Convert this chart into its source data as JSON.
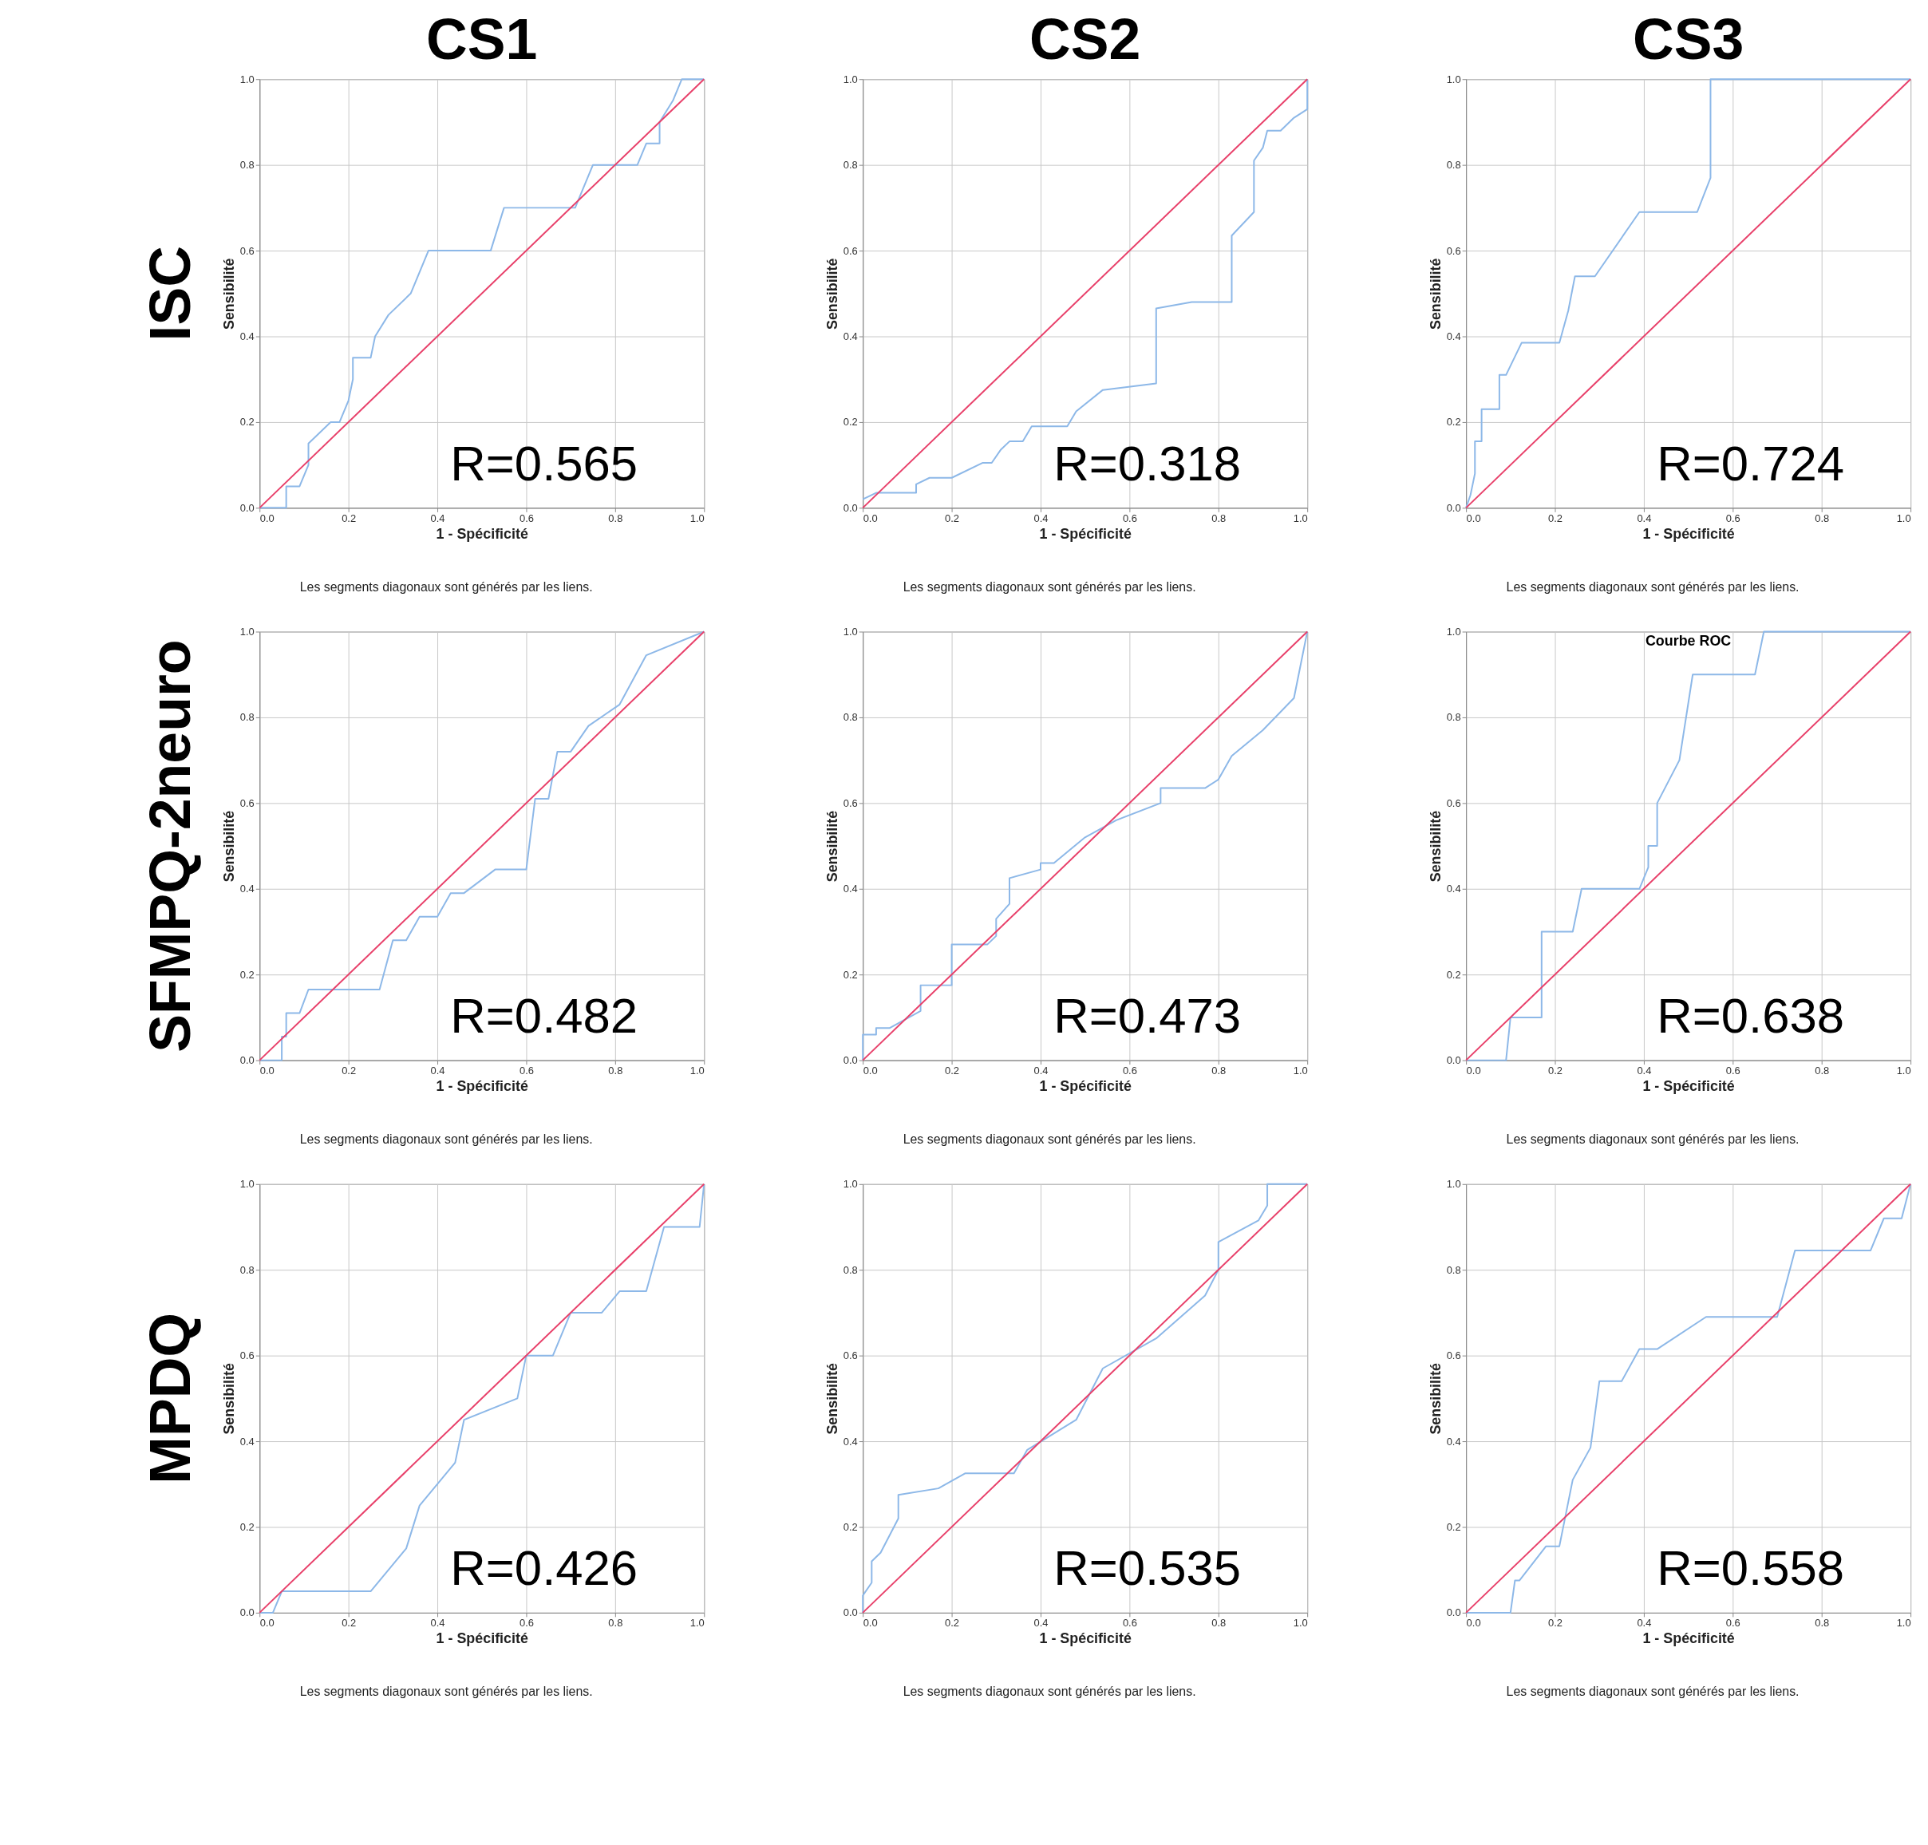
{
  "chart_data": [
    {
      "type": "line",
      "title": "CS1",
      "subtitle": "ISC",
      "xlabel": "1 - Spécificité",
      "ylabel": "Sensibilité",
      "xlim": [
        0,
        1
      ],
      "ylim": [
        0,
        1
      ],
      "xticks": [
        {
          "value": 0,
          "label": "0.0"
        },
        {
          "value": 0.2,
          "label": "0.2"
        },
        {
          "value": 0.4,
          "label": "0.4"
        },
        {
          "value": 0.6,
          "label": "0.6"
        },
        {
          "value": 0.8,
          "label": "0.8"
        },
        {
          "value": 1,
          "label": "1.0"
        }
      ],
      "yticks": [
        {
          "value": 0,
          "label": "0.0"
        },
        {
          "value": 0.2,
          "label": "0.2"
        },
        {
          "value": 0.4,
          "label": "0.4"
        },
        {
          "value": 0.6,
          "label": "0.6"
        },
        {
          "value": 0.8,
          "label": "0.8"
        },
        {
          "value": 1,
          "label": "1.0"
        }
      ],
      "grid": true,
      "annotations": [
        "R=0.565",
        "Les segments diagonaux sont générés par les liens."
      ],
      "series": [
        {
          "color": "#8db8e8",
          "x": [
            0,
            0.06,
            0.06,
            0.09,
            0.11,
            0.11,
            0.16,
            0.18,
            0.2,
            0.21,
            0.21,
            0.25,
            0.26,
            0.29,
            0.34,
            0.38,
            0.52,
            0.55,
            0.71,
            0.75,
            0.85,
            0.87,
            0.9,
            0.9,
            0.93,
            0.95,
            1
          ],
          "values": [
            0,
            0,
            0.05,
            0.05,
            0.1,
            0.15,
            0.2,
            0.2,
            0.25,
            0.3,
            0.35,
            0.35,
            0.4,
            0.45,
            0.5,
            0.6,
            0.6,
            0.7,
            0.7,
            0.8,
            0.8,
            0.85,
            0.85,
            0.9,
            0.95,
            1,
            1
          ]
        },
        {
          "color": "#e8406a",
          "x": [
            0,
            1
          ],
          "values": [
            0,
            1
          ]
        }
      ]
    },
    {
      "type": "line",
      "title": "CS2",
      "xlabel": "1 - Spécificité",
      "ylabel": "Sensibilité",
      "xlim": [
        0,
        1
      ],
      "ylim": [
        0,
        1
      ],
      "xticks": [
        {
          "value": 0,
          "label": "0.0"
        },
        {
          "value": 0.2,
          "label": "0.2"
        },
        {
          "value": 0.4,
          "label": "0.4"
        },
        {
          "value": 0.6,
          "label": "0.6"
        },
        {
          "value": 0.8,
          "label": "0.8"
        },
        {
          "value": 1,
          "label": "1.0"
        }
      ],
      "yticks": [
        {
          "value": 0,
          "label": "0.0"
        },
        {
          "value": 0.2,
          "label": "0.2"
        },
        {
          "value": 0.4,
          "label": "0.4"
        },
        {
          "value": 0.6,
          "label": "0.6"
        },
        {
          "value": 0.8,
          "label": "0.8"
        },
        {
          "value": 1,
          "label": "1.0"
        }
      ],
      "grid": true,
      "annotations": [
        "R=0.318",
        "Les segments diagonaux sont générés par les liens."
      ],
      "series": [
        {
          "color": "#8db8e8",
          "x": [
            0,
            0.03,
            0.12,
            0.12,
            0.15,
            0.2,
            0.27,
            0.29,
            0.31,
            0.33,
            0.36,
            0.38,
            0.46,
            0.48,
            0.54,
            0.66,
            0.66,
            0.74,
            0.83,
            0.83,
            0.88,
            0.88,
            0.9,
            0.91,
            0.94,
            0.97,
            1,
            1
          ],
          "values": [
            0.02,
            0.035,
            0.035,
            0.055,
            0.07,
            0.07,
            0.105,
            0.105,
            0.135,
            0.155,
            0.155,
            0.19,
            0.19,
            0.225,
            0.275,
            0.29,
            0.465,
            0.48,
            0.48,
            0.635,
            0.69,
            0.81,
            0.84,
            0.88,
            0.88,
            0.91,
            0.93,
            1
          ]
        },
        {
          "color": "#e8406a",
          "x": [
            0,
            1
          ],
          "values": [
            0,
            1
          ]
        }
      ]
    },
    {
      "type": "line",
      "title": "CS3",
      "xlabel": "1 - Spécificité",
      "ylabel": "Sensibilité",
      "xlim": [
        0,
        1
      ],
      "ylim": [
        0,
        1
      ],
      "xticks": [
        {
          "value": 0,
          "label": "0.0"
        },
        {
          "value": 0.2,
          "label": "0.2"
        },
        {
          "value": 0.4,
          "label": "0.4"
        },
        {
          "value": 0.6,
          "label": "0.6"
        },
        {
          "value": 0.8,
          "label": "0.8"
        },
        {
          "value": 1,
          "label": "1.0"
        }
      ],
      "yticks": [
        {
          "value": 0,
          "label": "0.0"
        },
        {
          "value": 0.2,
          "label": "0.2"
        },
        {
          "value": 0.4,
          "label": "0.4"
        },
        {
          "value": 0.6,
          "label": "0.6"
        },
        {
          "value": 0.8,
          "label": "0.8"
        },
        {
          "value": 1,
          "label": "1.0"
        }
      ],
      "grid": true,
      "annotations": [
        "R=0.724",
        "Les segments diagonaux sont générés par les liens."
      ],
      "series": [
        {
          "color": "#8db8e8",
          "x": [
            0,
            0.01,
            0.02,
            0.02,
            0.035,
            0.035,
            0.075,
            0.075,
            0.09,
            0.125,
            0.21,
            0.23,
            0.245,
            0.29,
            0.39,
            0.52,
            0.55,
            0.55,
            1
          ],
          "values": [
            0,
            0.03,
            0.08,
            0.155,
            0.155,
            0.23,
            0.23,
            0.31,
            0.31,
            0.385,
            0.385,
            0.46,
            0.54,
            0.54,
            0.69,
            0.69,
            0.77,
            1,
            1
          ]
        },
        {
          "color": "#e8406a",
          "x": [
            0,
            1
          ],
          "values": [
            0,
            1
          ]
        }
      ]
    },
    {
      "type": "line",
      "subtitle": "SFMPQ-2neuro",
      "xlabel": "1 - Spécificité",
      "ylabel": "Sensibilité",
      "xlim": [
        0,
        1
      ],
      "ylim": [
        0,
        1
      ],
      "xticks": [
        {
          "value": 0,
          "label": "0.0"
        },
        {
          "value": 0.2,
          "label": "0.2"
        },
        {
          "value": 0.4,
          "label": "0.4"
        },
        {
          "value": 0.6,
          "label": "0.6"
        },
        {
          "value": 0.8,
          "label": "0.8"
        },
        {
          "value": 1,
          "label": "1.0"
        }
      ],
      "yticks": [
        {
          "value": 0,
          "label": "0.0"
        },
        {
          "value": 0.2,
          "label": "0.2"
        },
        {
          "value": 0.4,
          "label": "0.4"
        },
        {
          "value": 0.6,
          "label": "0.6"
        },
        {
          "value": 0.8,
          "label": "0.8"
        },
        {
          "value": 1,
          "label": "1.0"
        }
      ],
      "grid": true,
      "annotations": [
        "R=0.482",
        "Les segments diagonaux sont générés par les liens."
      ],
      "series": [
        {
          "color": "#8db8e8",
          "x": [
            0,
            0.05,
            0.05,
            0.06,
            0.06,
            0.09,
            0.11,
            0.27,
            0.3,
            0.33,
            0.36,
            0.4,
            0.43,
            0.46,
            0.53,
            0.6,
            0.62,
            0.65,
            0.67,
            0.7,
            0.74,
            0.81,
            0.87,
            1
          ],
          "values": [
            0,
            0,
            0.055,
            0.055,
            0.11,
            0.11,
            0.165,
            0.165,
            0.28,
            0.28,
            0.335,
            0.335,
            0.39,
            0.39,
            0.445,
            0.445,
            0.61,
            0.61,
            0.72,
            0.72,
            0.78,
            0.83,
            0.945,
            1
          ]
        },
        {
          "color": "#e8406a",
          "x": [
            0,
            1
          ],
          "values": [
            0,
            1
          ]
        }
      ]
    },
    {
      "type": "line",
      "xlabel": "1 - Spécificité",
      "ylabel": "Sensibilité",
      "xlim": [
        0,
        1
      ],
      "ylim": [
        0,
        1
      ],
      "xticks": [
        {
          "value": 0,
          "label": "0.0"
        },
        {
          "value": 0.2,
          "label": "0.2"
        },
        {
          "value": 0.4,
          "label": "0.4"
        },
        {
          "value": 0.6,
          "label": "0.6"
        },
        {
          "value": 0.8,
          "label": "0.8"
        },
        {
          "value": 1,
          "label": "1.0"
        }
      ],
      "yticks": [
        {
          "value": 0,
          "label": "0.0"
        },
        {
          "value": 0.2,
          "label": "0.2"
        },
        {
          "value": 0.4,
          "label": "0.4"
        },
        {
          "value": 0.6,
          "label": "0.6"
        },
        {
          "value": 0.8,
          "label": "0.8"
        },
        {
          "value": 1,
          "label": "1.0"
        }
      ],
      "grid": true,
      "annotations": [
        "R=0.473",
        "Les segments diagonaux sont générés par les liens."
      ],
      "series": [
        {
          "color": "#8db8e8",
          "x": [
            0,
            0,
            0.03,
            0.03,
            0.06,
            0.13,
            0.13,
            0.2,
            0.2,
            0.28,
            0.3,
            0.3,
            0.33,
            0.33,
            0.4,
            0.4,
            0.43,
            0.5,
            0.57,
            0.67,
            0.67,
            0.77,
            0.8,
            0.83,
            0.9,
            0.97,
            1
          ],
          "values": [
            0,
            0.06,
            0.06,
            0.075,
            0.075,
            0.115,
            0.175,
            0.175,
            0.27,
            0.27,
            0.29,
            0.33,
            0.365,
            0.425,
            0.445,
            0.46,
            0.46,
            0.52,
            0.56,
            0.6,
            0.635,
            0.635,
            0.655,
            0.71,
            0.77,
            0.845,
            1
          ]
        },
        {
          "color": "#e8406a",
          "x": [
            0,
            1
          ],
          "values": [
            0,
            1
          ]
        }
      ]
    },
    {
      "type": "line",
      "title": "Courbe ROC",
      "xlabel": "1 - Spécificité",
      "ylabel": "Sensibilité",
      "xlim": [
        0,
        1
      ],
      "ylim": [
        0,
        1
      ],
      "xticks": [
        {
          "value": 0,
          "label": "0.0"
        },
        {
          "value": 0.2,
          "label": "0.2"
        },
        {
          "value": 0.4,
          "label": "0.4"
        },
        {
          "value": 0.6,
          "label": "0.6"
        },
        {
          "value": 0.8,
          "label": "0.8"
        },
        {
          "value": 1,
          "label": "1.0"
        }
      ],
      "yticks": [
        {
          "value": 0,
          "label": "0.0"
        },
        {
          "value": 0.2,
          "label": "0.2"
        },
        {
          "value": 0.4,
          "label": "0.4"
        },
        {
          "value": 0.6,
          "label": "0.6"
        },
        {
          "value": 0.8,
          "label": "0.8"
        },
        {
          "value": 1,
          "label": "1.0"
        }
      ],
      "grid": true,
      "annotations": [
        "R=0.638",
        "Les segments diagonaux sont générés par les liens."
      ],
      "series": [
        {
          "color": "#8db8e8",
          "x": [
            0,
            0.09,
            0.1,
            0.17,
            0.17,
            0.24,
            0.26,
            0.39,
            0.41,
            0.41,
            0.43,
            0.43,
            0.48,
            0.51,
            0.65,
            0.67,
            1
          ],
          "values": [
            0,
            0,
            0.1,
            0.1,
            0.3,
            0.3,
            0.4,
            0.4,
            0.45,
            0.5,
            0.5,
            0.6,
            0.7,
            0.9,
            0.9,
            1,
            1
          ]
        },
        {
          "color": "#e8406a",
          "x": [
            0,
            1
          ],
          "values": [
            0,
            1
          ]
        }
      ]
    },
    {
      "type": "line",
      "subtitle": "MPDQ",
      "xlabel": "1 - Spécificité",
      "ylabel": "Sensibilité",
      "xlim": [
        0,
        1
      ],
      "ylim": [
        0,
        1
      ],
      "xticks": [
        {
          "value": 0,
          "label": "0.0"
        },
        {
          "value": 0.2,
          "label": "0.2"
        },
        {
          "value": 0.4,
          "label": "0.4"
        },
        {
          "value": 0.6,
          "label": "0.6"
        },
        {
          "value": 0.8,
          "label": "0.8"
        },
        {
          "value": 1,
          "label": "1.0"
        }
      ],
      "yticks": [
        {
          "value": 0,
          "label": "0.0"
        },
        {
          "value": 0.2,
          "label": "0.2"
        },
        {
          "value": 0.4,
          "label": "0.4"
        },
        {
          "value": 0.6,
          "label": "0.6"
        },
        {
          "value": 0.8,
          "label": "0.8"
        },
        {
          "value": 1,
          "label": "1.0"
        }
      ],
      "grid": true,
      "annotations": [
        "R=0.426",
        "Les segments diagonaux sont générés par les liens."
      ],
      "series": [
        {
          "color": "#8db8e8",
          "x": [
            0,
            0.03,
            0.05,
            0.25,
            0.33,
            0.36,
            0.44,
            0.46,
            0.58,
            0.6,
            0.66,
            0.7,
            0.77,
            0.81,
            0.87,
            0.91,
            0.99,
            1
          ],
          "values": [
            0,
            0,
            0.05,
            0.05,
            0.15,
            0.25,
            0.35,
            0.45,
            0.5,
            0.6,
            0.6,
            0.7,
            0.7,
            0.75,
            0.75,
            0.9,
            0.9,
            1
          ]
        },
        {
          "color": "#e8406a",
          "x": [
            0,
            1
          ],
          "values": [
            0,
            1
          ]
        }
      ]
    },
    {
      "type": "line",
      "xlabel": "1 - Spécificité",
      "ylabel": "Sensibilité",
      "xlim": [
        0,
        1
      ],
      "ylim": [
        0,
        1
      ],
      "xticks": [
        {
          "value": 0,
          "label": "0.0"
        },
        {
          "value": 0.2,
          "label": "0.2"
        },
        {
          "value": 0.4,
          "label": "0.4"
        },
        {
          "value": 0.6,
          "label": "0.6"
        },
        {
          "value": 0.8,
          "label": "0.8"
        },
        {
          "value": 1,
          "label": "1.0"
        }
      ],
      "yticks": [
        {
          "value": 0,
          "label": "0.0"
        },
        {
          "value": 0.2,
          "label": "0.2"
        },
        {
          "value": 0.4,
          "label": "0.4"
        },
        {
          "value": 0.6,
          "label": "0.6"
        },
        {
          "value": 0.8,
          "label": "0.8"
        },
        {
          "value": 1,
          "label": "1.0"
        }
      ],
      "grid": true,
      "annotations": [
        "R=0.535",
        "Les segments diagonaux sont générés par les liens."
      ],
      "series": [
        {
          "color": "#8db8e8",
          "x": [
            0,
            0,
            0.02,
            0.02,
            0.04,
            0.06,
            0.08,
            0.08,
            0.17,
            0.23,
            0.34,
            0.37,
            0.48,
            0.54,
            0.66,
            0.77,
            0.8,
            0.8,
            0.89,
            0.91,
            0.91,
            1
          ],
          "values": [
            0,
            0.04,
            0.07,
            0.12,
            0.14,
            0.18,
            0.22,
            0.275,
            0.29,
            0.325,
            0.325,
            0.38,
            0.45,
            0.57,
            0.64,
            0.74,
            0.8,
            0.865,
            0.915,
            0.95,
            1,
            1
          ]
        },
        {
          "color": "#e8406a",
          "x": [
            0,
            1
          ],
          "values": [
            0,
            1
          ]
        }
      ]
    },
    {
      "type": "line",
      "xlabel": "1 - Spécificité",
      "ylabel": "Sensibilité",
      "xlim": [
        0,
        1
      ],
      "ylim": [
        0,
        1
      ],
      "xticks": [
        {
          "value": 0,
          "label": "0.0"
        },
        {
          "value": 0.2,
          "label": "0.2"
        },
        {
          "value": 0.4,
          "label": "0.4"
        },
        {
          "value": 0.6,
          "label": "0.6"
        },
        {
          "value": 0.8,
          "label": "0.8"
        },
        {
          "value": 1,
          "label": "1.0"
        }
      ],
      "yticks": [
        {
          "value": 0,
          "label": "0.0"
        },
        {
          "value": 0.2,
          "label": "0.2"
        },
        {
          "value": 0.4,
          "label": "0.4"
        },
        {
          "value": 0.6,
          "label": "0.6"
        },
        {
          "value": 0.8,
          "label": "0.8"
        },
        {
          "value": 1,
          "label": "1.0"
        }
      ],
      "grid": true,
      "annotations": [
        "R=0.558",
        "Les segments diagonaux sont générés par les liens."
      ],
      "series": [
        {
          "color": "#8db8e8",
          "x": [
            0,
            0.1,
            0.11,
            0.12,
            0.18,
            0.21,
            0.24,
            0.28,
            0.3,
            0.35,
            0.39,
            0.43,
            0.54,
            0.7,
            0.74,
            0.91,
            0.94,
            0.98,
            1
          ],
          "values": [
            0,
            0,
            0.075,
            0.075,
            0.155,
            0.155,
            0.31,
            0.385,
            0.54,
            0.54,
            0.615,
            0.615,
            0.69,
            0.69,
            0.845,
            0.845,
            0.92,
            0.92,
            1
          ]
        },
        {
          "color": "#e8406a",
          "x": [
            0,
            1
          ],
          "values": [
            0,
            1
          ]
        }
      ]
    }
  ]
}
